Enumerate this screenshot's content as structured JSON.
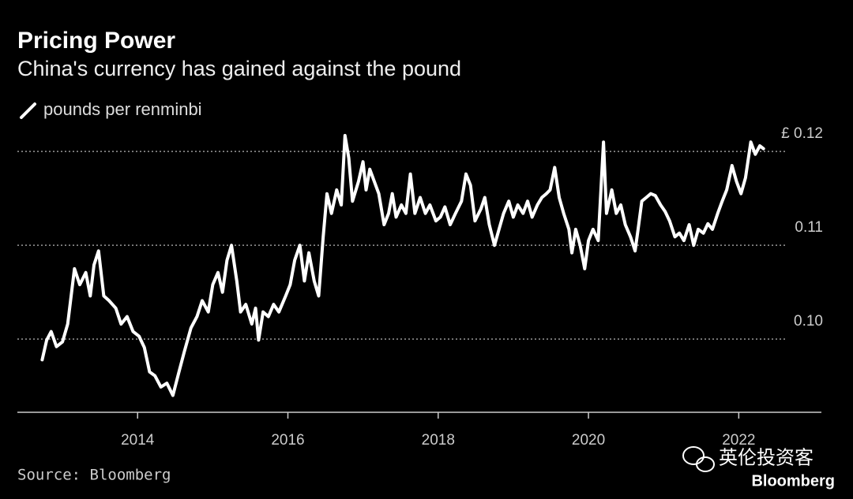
{
  "chart_data": {
    "type": "line",
    "title": "Pricing Power",
    "subtitle": "China's currency has gained against the pound",
    "source": "Source: Bloomberg",
    "watermark": "英伦投资客",
    "watermark_brand": "Bloomberg",
    "xlim": [
      2012.4,
      2023.1
    ],
    "xticks": [
      2014,
      2016,
      2018,
      2020,
      2022
    ],
    "ylim": [
      0.0922,
      0.1227
    ],
    "yticks": [
      {
        "value": 0.1,
        "label": "0.10"
      },
      0.11,
      {
        "value": 0.12,
        "label": "£ 0.12"
      }
    ],
    "grid": true,
    "x": [
      2012.73,
      2012.79,
      2012.85,
      2012.92,
      2013.0,
      2013.07,
      2013.16,
      2013.23,
      2013.31,
      2013.37,
      2013.42,
      2013.48,
      2013.55,
      2013.62,
      2013.71,
      2013.78,
      2013.86,
      2013.94,
      2014.02,
      2014.09,
      2014.16,
      2014.23,
      2014.31,
      2014.39,
      2014.47,
      2014.55,
      2014.62,
      2014.71,
      2014.79,
      2014.86,
      2014.94,
      2015.0,
      2015.07,
      2015.13,
      2015.19,
      2015.25,
      2015.32,
      2015.37,
      2015.44,
      2015.52,
      2015.57,
      2015.61,
      2015.67,
      2015.74,
      2015.81,
      2015.88,
      2015.97,
      2016.03,
      2016.09,
      2016.16,
      2016.22,
      2016.28,
      2016.35,
      2016.41,
      2016.47,
      2016.52,
      2016.58,
      2016.65,
      2016.71,
      2016.76,
      2016.81,
      2016.86,
      2016.94,
      2017.0,
      2017.04,
      2017.09,
      2017.15,
      2017.21,
      2017.28,
      2017.34,
      2017.39,
      2017.44,
      2017.51,
      2017.57,
      2017.63,
      2017.69,
      2017.76,
      2017.83,
      2017.89,
      2017.97,
      2018.03,
      2018.09,
      2018.16,
      2018.23,
      2018.31,
      2018.37,
      2018.43,
      2018.49,
      2018.57,
      2018.62,
      2018.68,
      2018.75,
      2018.81,
      2018.87,
      2018.94,
      2019.0,
      2019.06,
      2019.13,
      2019.19,
      2019.25,
      2019.32,
      2019.38,
      2019.44,
      2019.49,
      2019.55,
      2019.61,
      2019.67,
      2019.74,
      2019.78,
      2019.83,
      2019.89,
      2019.95,
      2020.0,
      2020.06,
      2020.13,
      2020.2,
      2020.24,
      2020.31,
      2020.37,
      2020.43,
      2020.49,
      2020.56,
      2020.62,
      2020.66,
      2020.71,
      2020.77,
      2020.83,
      2020.89,
      2020.96,
      2021.02,
      2021.08,
      2021.15,
      2021.21,
      2021.27,
      2021.34,
      2021.4,
      2021.46,
      2021.53,
      2021.59,
      2021.65,
      2021.72,
      2021.78,
      2021.84,
      2021.91,
      2021.97,
      2022.03,
      2022.09,
      2022.16,
      2022.22,
      2022.28,
      2022.33
    ],
    "series": [
      {
        "name": "pounds per renminbi",
        "color": "#ffffff",
        "values": [
          0.0978,
          0.0999,
          0.1008,
          0.0992,
          0.0997,
          0.1016,
          0.1075,
          0.1058,
          0.1071,
          0.1046,
          0.1079,
          0.1094,
          0.1046,
          0.1041,
          0.1033,
          0.1016,
          0.1024,
          0.1008,
          0.1003,
          0.0991,
          0.0965,
          0.0961,
          0.0949,
          0.0953,
          0.094,
          0.0965,
          0.0986,
          0.1012,
          0.1024,
          0.1041,
          0.1029,
          0.1058,
          0.1071,
          0.105,
          0.1084,
          0.11,
          0.1062,
          0.1029,
          0.1037,
          0.1016,
          0.1033,
          0.0999,
          0.1029,
          0.1024,
          0.1037,
          0.1029,
          0.1046,
          0.1058,
          0.1084,
          0.11,
          0.1062,
          0.1092,
          0.1062,
          0.1046,
          0.1109,
          0.1155,
          0.1134,
          0.1159,
          0.1143,
          0.1217,
          0.1193,
          0.1147,
          0.1168,
          0.1189,
          0.1159,
          0.1181,
          0.1168,
          0.1155,
          0.1122,
          0.1134,
          0.1155,
          0.113,
          0.1143,
          0.1134,
          0.1176,
          0.1134,
          0.1151,
          0.1134,
          0.1143,
          0.1126,
          0.113,
          0.1141,
          0.1122,
          0.1134,
          0.1147,
          0.1176,
          0.1164,
          0.1126,
          0.1139,
          0.1151,
          0.1122,
          0.11,
          0.1117,
          0.1134,
          0.1147,
          0.113,
          0.1143,
          0.1134,
          0.1147,
          0.113,
          0.1143,
          0.1151,
          0.1155,
          0.1159,
          0.1183,
          0.1151,
          0.1134,
          0.1117,
          0.1092,
          0.1117,
          0.11,
          0.1075,
          0.1105,
          0.1117,
          0.1105,
          0.121,
          0.1134,
          0.1159,
          0.1134,
          0.1143,
          0.1122,
          0.1109,
          0.1094,
          0.1117,
          0.1147,
          0.1151,
          0.1155,
          0.1153,
          0.1143,
          0.1136,
          0.1126,
          0.1109,
          0.1113,
          0.1105,
          0.1122,
          0.11,
          0.1117,
          0.1113,
          0.1123,
          0.1117,
          0.1134,
          0.1147,
          0.1159,
          0.1185,
          0.1168,
          0.1155,
          0.1172,
          0.121,
          0.1197,
          0.1206,
          0.1203
        ]
      }
    ]
  }
}
